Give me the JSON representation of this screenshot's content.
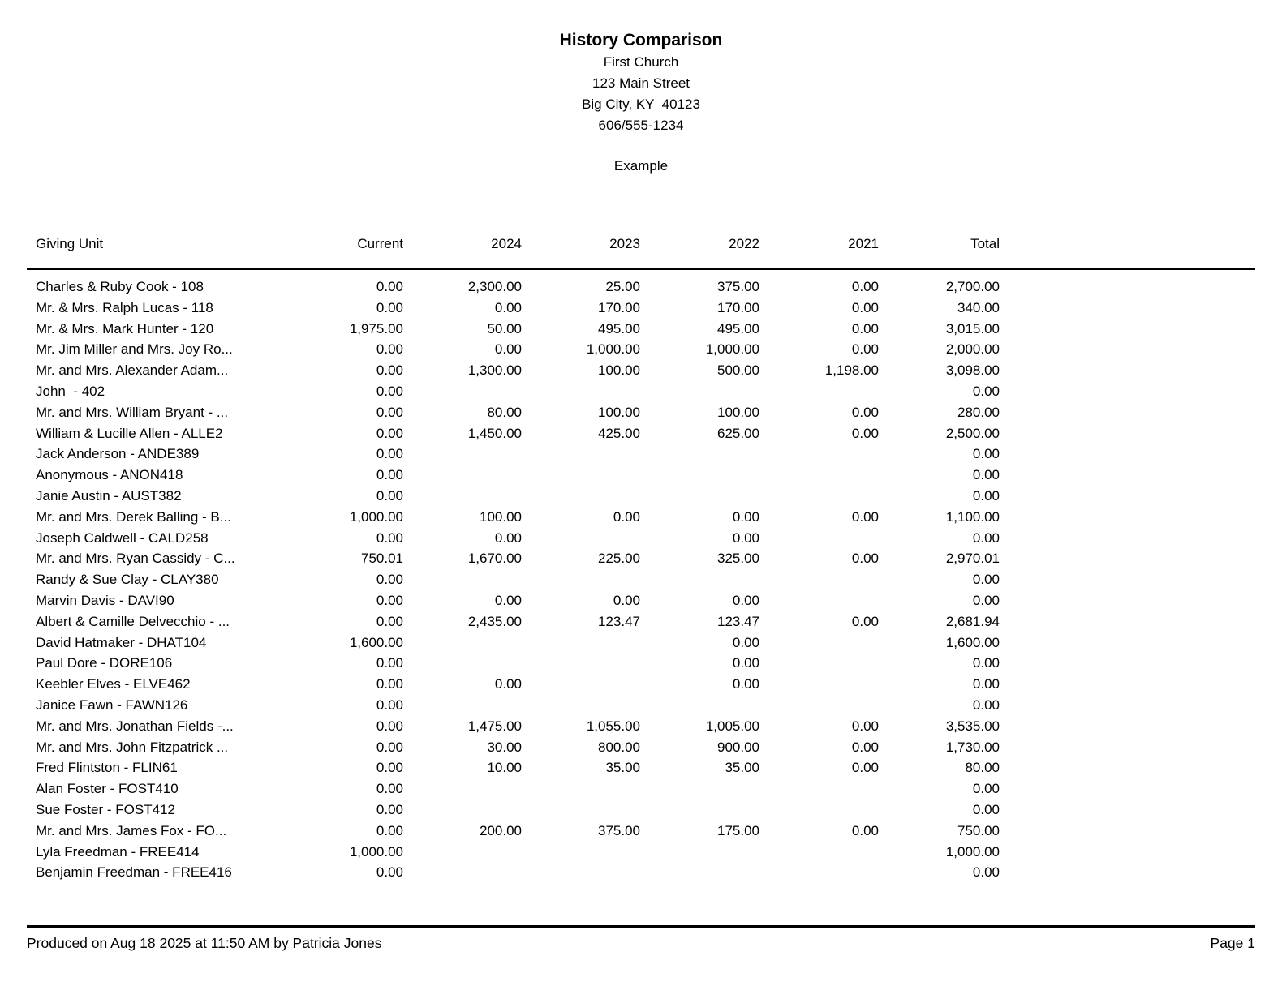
{
  "header": {
    "title": "History Comparison",
    "organization": "First Church",
    "address_line1": "123 Main Street",
    "address_line2": "Big City, KY  40123",
    "phone": "606/555-1234",
    "subtitle": "Example"
  },
  "table": {
    "columns": [
      "Giving Unit",
      "Current",
      "2024",
      "2023",
      "2022",
      "2021",
      "Total"
    ],
    "rows": [
      [
        "Charles & Ruby Cook - 108",
        "0.00",
        "2,300.00",
        "25.00",
        "375.00",
        "0.00",
        "2,700.00"
      ],
      [
        "Mr. & Mrs. Ralph Lucas - 118",
        "0.00",
        "0.00",
        "170.00",
        "170.00",
        "0.00",
        "340.00"
      ],
      [
        "Mr. & Mrs. Mark Hunter - 120",
        "1,975.00",
        "50.00",
        "495.00",
        "495.00",
        "0.00",
        "3,015.00"
      ],
      [
        "Mr. Jim Miller and Mrs. Joy Ro...",
        "0.00",
        "0.00",
        "1,000.00",
        "1,000.00",
        "0.00",
        "2,000.00"
      ],
      [
        "Mr. and Mrs. Alexander Adam...",
        "0.00",
        "1,300.00",
        "100.00",
        "500.00",
        "1,198.00",
        "3,098.00"
      ],
      [
        "John  - 402",
        "0.00",
        "",
        "",
        "",
        "",
        "0.00"
      ],
      [
        "Mr. and Mrs. William Bryant - ...",
        "0.00",
        "80.00",
        "100.00",
        "100.00",
        "0.00",
        "280.00"
      ],
      [
        "William & Lucille Allen - ALLE2",
        "0.00",
        "1,450.00",
        "425.00",
        "625.00",
        "0.00",
        "2,500.00"
      ],
      [
        "Jack Anderson - ANDE389",
        "0.00",
        "",
        "",
        "",
        "",
        "0.00"
      ],
      [
        "Anonymous - ANON418",
        "0.00",
        "",
        "",
        "",
        "",
        "0.00"
      ],
      [
        "Janie Austin - AUST382",
        "0.00",
        "",
        "",
        "",
        "",
        "0.00"
      ],
      [
        "Mr. and Mrs. Derek Balling - B...",
        "1,000.00",
        "100.00",
        "0.00",
        "0.00",
        "0.00",
        "1,100.00"
      ],
      [
        "Joseph Caldwell - CALD258",
        "0.00",
        "0.00",
        "",
        "0.00",
        "",
        "0.00"
      ],
      [
        "Mr. and Mrs. Ryan Cassidy - C...",
        "750.01",
        "1,670.00",
        "225.00",
        "325.00",
        "0.00",
        "2,970.01"
      ],
      [
        "Randy & Sue Clay - CLAY380",
        "0.00",
        "",
        "",
        "",
        "",
        "0.00"
      ],
      [
        "Marvin Davis - DAVI90",
        "0.00",
        "0.00",
        "0.00",
        "0.00",
        "",
        "0.00"
      ],
      [
        "Albert & Camille Delvecchio - ...",
        "0.00",
        "2,435.00",
        "123.47",
        "123.47",
        "0.00",
        "2,681.94"
      ],
      [
        "David Hatmaker - DHAT104",
        "1,600.00",
        "",
        "",
        "0.00",
        "",
        "1,600.00"
      ],
      [
        "Paul Dore - DORE106",
        "0.00",
        "",
        "",
        "0.00",
        "",
        "0.00"
      ],
      [
        "Keebler Elves - ELVE462",
        "0.00",
        "0.00",
        "",
        "0.00",
        "",
        "0.00"
      ],
      [
        "Janice Fawn - FAWN126",
        "0.00",
        "",
        "",
        "",
        "",
        "0.00"
      ],
      [
        "Mr. and Mrs. Jonathan Fields -...",
        "0.00",
        "1,475.00",
        "1,055.00",
        "1,005.00",
        "0.00",
        "3,535.00"
      ],
      [
        "Mr. and Mrs. John Fitzpatrick ...",
        "0.00",
        "30.00",
        "800.00",
        "900.00",
        "0.00",
        "1,730.00"
      ],
      [
        "Fred Flintston - FLIN61",
        "0.00",
        "10.00",
        "35.00",
        "35.00",
        "0.00",
        "80.00"
      ],
      [
        "Alan Foster - FOST410",
        "0.00",
        "",
        "",
        "",
        "",
        "0.00"
      ],
      [
        "Sue Foster - FOST412",
        "0.00",
        "",
        "",
        "",
        "",
        "0.00"
      ],
      [
        "Mr. and Mrs. James Fox - FO...",
        "0.00",
        "200.00",
        "375.00",
        "175.00",
        "0.00",
        "750.00"
      ],
      [
        "Lyla Freedman - FREE414",
        "1,000.00",
        "",
        "",
        "",
        "",
        "1,000.00"
      ],
      [
        "Benjamin Freedman - FREE416",
        "0.00",
        "",
        "",
        "",
        "",
        "0.00"
      ]
    ]
  },
  "footer": {
    "produced_label": "Produced on Aug 18 2025 at 11:50 AM by Patricia Jones",
    "page_label": "Page 1"
  }
}
